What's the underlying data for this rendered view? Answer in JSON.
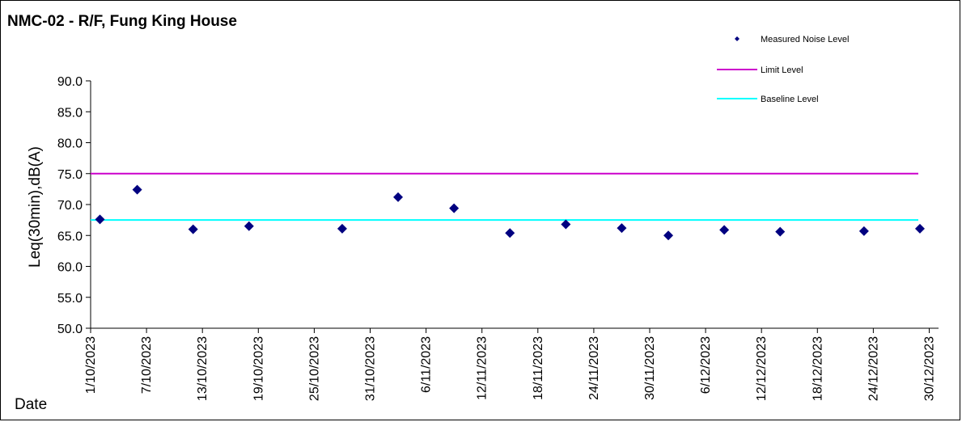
{
  "chart_data": {
    "type": "scatter",
    "title": "NMC-02 - R/F, Fung King House",
    "xlabel": "Date",
    "ylabel": "Leq(30min),dB(A)",
    "ylim": [
      50.0,
      90.0
    ],
    "yticks": [
      "50.0",
      "55.0",
      "60.0",
      "65.0",
      "70.0",
      "75.0",
      "80.0",
      "85.0",
      "90.0"
    ],
    "xlim": [
      "1/10/2023",
      "31/12/2023"
    ],
    "xticks": [
      "1/10/2023",
      "7/10/2023",
      "13/10/2023",
      "19/10/2023",
      "25/10/2023",
      "31/10/2023",
      "6/11/2023",
      "12/11/2023",
      "18/11/2023",
      "24/11/2023",
      "30/11/2023",
      "6/12/2023",
      "12/12/2023",
      "18/12/2023",
      "24/12/2023",
      "30/12/2023"
    ],
    "grid": false,
    "legend_position": "top-right",
    "series": [
      {
        "name": "Measured Noise Level",
        "kind": "markers",
        "marker": "diamond",
        "color": "#000080",
        "points": [
          {
            "x": "2/10/2023",
            "y": 67.6
          },
          {
            "x": "6/10/2023",
            "y": 72.4
          },
          {
            "x": "12/10/2023",
            "y": 66.0
          },
          {
            "x": "18/10/2023",
            "y": 66.5
          },
          {
            "x": "28/10/2023",
            "y": 66.1
          },
          {
            "x": "3/11/2023",
            "y": 71.2
          },
          {
            "x": "9/11/2023",
            "y": 69.4
          },
          {
            "x": "15/11/2023",
            "y": 65.4
          },
          {
            "x": "21/11/2023",
            "y": 66.8
          },
          {
            "x": "27/11/2023",
            "y": 66.2
          },
          {
            "x": "2/12/2023",
            "y": 65.0
          },
          {
            "x": "8/12/2023",
            "y": 65.9
          },
          {
            "x": "14/12/2023",
            "y": 65.6
          },
          {
            "x": "23/12/2023",
            "y": 65.7
          },
          {
            "x": "29/12/2023",
            "y": 66.1
          }
        ]
      },
      {
        "name": "Limit Level",
        "kind": "line",
        "color": "#CC00CC",
        "y": 75.0
      },
      {
        "name": "Baseline Level",
        "kind": "line",
        "color": "#00FFFF",
        "y": 67.5
      }
    ]
  }
}
